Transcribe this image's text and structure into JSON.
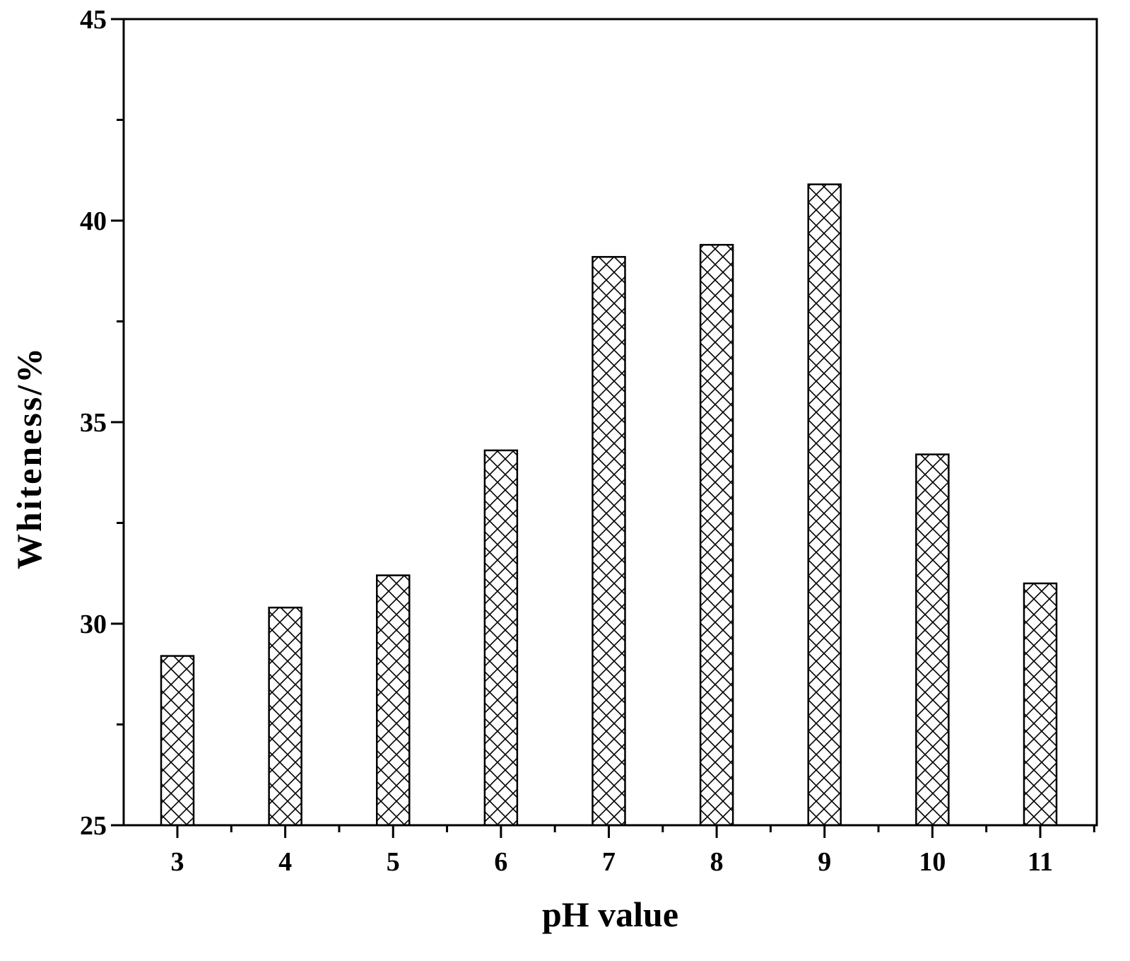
{
  "chart_data": {
    "type": "bar",
    "title": "",
    "xlabel": "pH value",
    "ylabel": "Whiteness/%",
    "categories": [
      "3",
      "4",
      "5",
      "6",
      "7",
      "8",
      "9",
      "10",
      "11"
    ],
    "values": [
      29.2,
      30.4,
      31.2,
      34.3,
      39.1,
      39.4,
      40.9,
      34.2,
      31.0
    ],
    "ylim": [
      25,
      45
    ],
    "yticks": [
      25,
      30,
      35,
      40,
      45
    ],
    "yticks_labels": [
      "25",
      "30",
      "35",
      "40",
      "45"
    ],
    "legend": "none",
    "grid": false,
    "bar_fill": "cross-hatch",
    "colors": {
      "bar_stroke": "#000000",
      "hatch": "#000000",
      "background": "#ffffff"
    }
  }
}
